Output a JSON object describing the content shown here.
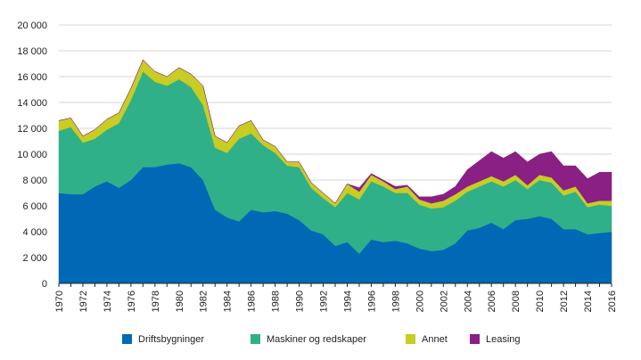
{
  "chart_data": {
    "type": "area",
    "stacked": true,
    "title": "",
    "xlabel": "",
    "ylabel": "",
    "ylim": [
      0,
      20000
    ],
    "yticks": [
      0,
      2000,
      4000,
      6000,
      8000,
      10000,
      12000,
      14000,
      16000,
      18000,
      20000
    ],
    "ytick_labels": [
      "0",
      "2 000",
      "4 000",
      "6 000",
      "8 000",
      "10 000",
      "12 000",
      "14 000",
      "16 000",
      "18 000",
      "20 000"
    ],
    "xlim": [
      1970,
      2016
    ],
    "xtick_labels": [
      "1970",
      "1972",
      "1974",
      "1976",
      "1978",
      "1980",
      "1982",
      "1984",
      "1986",
      "1988",
      "1990",
      "1992",
      "1994",
      "1996",
      "1998",
      "2000",
      "2002",
      "2004",
      "2006",
      "2008",
      "2010",
      "2012",
      "2014",
      "2016"
    ],
    "grid": "horizontal",
    "legend_position": "bottom",
    "x": [
      1970,
      1971,
      1972,
      1973,
      1974,
      1975,
      1976,
      1977,
      1978,
      1979,
      1980,
      1981,
      1982,
      1983,
      1984,
      1985,
      1986,
      1987,
      1988,
      1989,
      1990,
      1991,
      1992,
      1993,
      1994,
      1995,
      1996,
      1997,
      1998,
      1999,
      2000,
      2001,
      2002,
      2003,
      2004,
      2005,
      2006,
      2007,
      2008,
      2009,
      2010,
      2011,
      2012,
      2013,
      2014,
      2015,
      2016
    ],
    "series": [
      {
        "name": "Driftsbygninger",
        "color": "#0068b4",
        "values": [
          7000,
          6900,
          6900,
          7500,
          7900,
          7400,
          8000,
          9000,
          9000,
          9200,
          9300,
          9000,
          8000,
          5700,
          5100,
          4800,
          5700,
          5500,
          5600,
          5400,
          4900,
          4100,
          3800,
          2900,
          3200,
          2300,
          3400,
          3200,
          3300,
          3100,
          2700,
          2500,
          2600,
          3100,
          4100,
          4300,
          4700,
          4200,
          4900,
          5000,
          5200,
          5000,
          4200,
          4200,
          3800,
          3900,
          4000
        ]
      },
      {
        "name": "Maskiner og redskaper",
        "color": "#2fb089",
        "values": [
          4800,
          5200,
          4000,
          3700,
          4000,
          5000,
          6200,
          7400,
          6600,
          6100,
          6500,
          6200,
          5800,
          4800,
          5000,
          6400,
          5900,
          5200,
          4500,
          3700,
          4100,
          3300,
          2800,
          3000,
          3800,
          4200,
          4500,
          4300,
          3700,
          3900,
          3400,
          3300,
          3300,
          3300,
          3000,
          3200,
          3200,
          3300,
          3100,
          2300,
          2800,
          2800,
          2600,
          2900,
          2100,
          2200,
          2000
        ]
      },
      {
        "name": "Annet",
        "color": "#c8cc23",
        "values": [
          800,
          700,
          500,
          700,
          800,
          800,
          900,
          900,
          800,
          700,
          900,
          1000,
          1500,
          900,
          800,
          1000,
          1000,
          400,
          500,
          300,
          400,
          400,
          400,
          300,
          700,
          600,
          500,
          400,
          300,
          500,
          400,
          400,
          500,
          500,
          400,
          400,
          400,
          400,
          400,
          300,
          400,
          400,
          400,
          400,
          300,
          300,
          400
        ]
      },
      {
        "name": "Leasing",
        "color": "#8a1f84",
        "values": [
          0,
          0,
          0,
          0,
          0,
          0,
          0,
          0,
          0,
          0,
          0,
          0,
          0,
          0,
          0,
          0,
          0,
          0,
          0,
          0,
          0,
          0,
          0,
          0,
          0,
          300,
          100,
          100,
          200,
          100,
          200,
          500,
          500,
          600,
          1300,
          1600,
          1900,
          1800,
          1800,
          1800,
          1600,
          2000,
          1900,
          1600,
          1900,
          2200,
          2200
        ]
      }
    ]
  }
}
